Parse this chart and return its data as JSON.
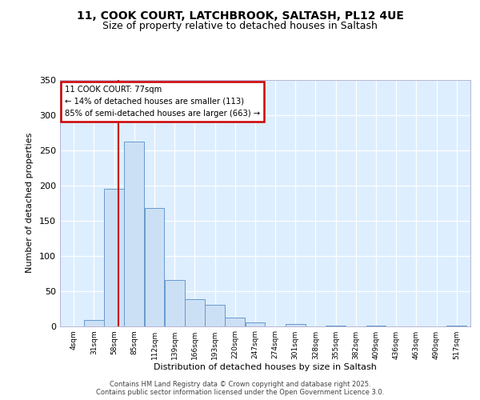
{
  "title1": "11, COOK COURT, LATCHBROOK, SALTASH, PL12 4UE",
  "title2": "Size of property relative to detached houses in Saltash",
  "xlabel": "Distribution of detached houses by size in Saltash",
  "ylabel": "Number of detached properties",
  "bin_edges": [
    4,
    31,
    58,
    85,
    112,
    139,
    166,
    193,
    220,
    247,
    274,
    301,
    328,
    355,
    382,
    409,
    436,
    463,
    490,
    517,
    544
  ],
  "bar_heights": [
    0,
    8,
    195,
    262,
    168,
    65,
    38,
    30,
    12,
    5,
    0,
    3,
    0,
    1,
    0,
    1,
    0,
    0,
    0,
    1
  ],
  "bar_color": "#cce0f5",
  "bar_edge_color": "#6699cc",
  "property_size": 77,
  "vline_color": "#cc0000",
  "annotation_title": "11 COOK COURT: 77sqm",
  "annotation_line1": "← 14% of detached houses are smaller (113)",
  "annotation_line2": "85% of semi-detached houses are larger (663) →",
  "annotation_box_color": "#cc0000",
  "ylim": [
    0,
    350
  ],
  "yticks": [
    0,
    50,
    100,
    150,
    200,
    250,
    300,
    350
  ],
  "footer1": "Contains HM Land Registry data © Crown copyright and database right 2025.",
  "footer2": "Contains public sector information licensed under the Open Government Licence 3.0.",
  "fig_bg_color": "#ffffff",
  "plot_bg_color": "#ddeeff"
}
